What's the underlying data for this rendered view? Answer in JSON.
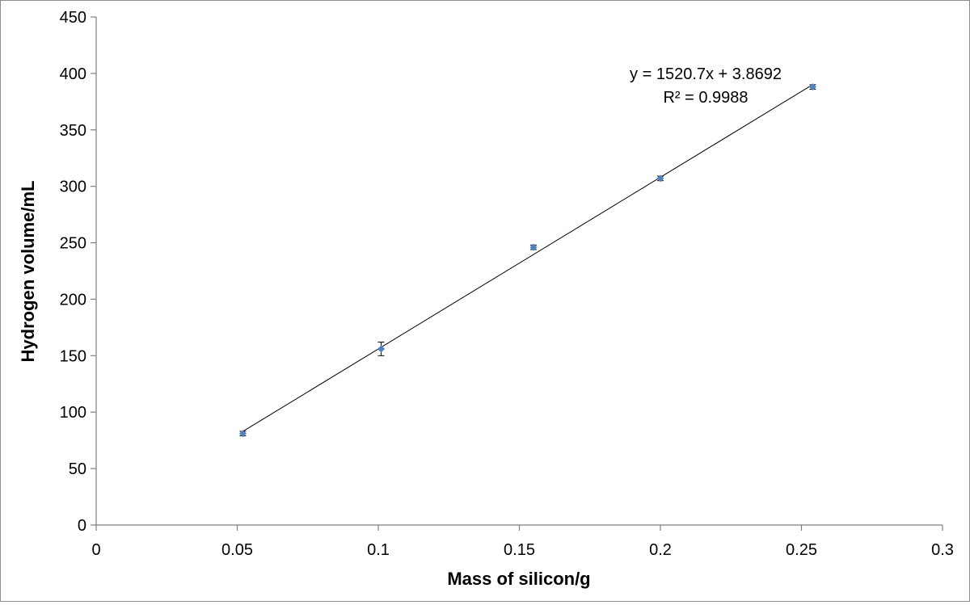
{
  "chart_data": {
    "type": "scatter",
    "title": "",
    "xlabel": "Mass of silicon/g",
    "ylabel": "Hydrogen volume/mL",
    "xlim": [
      0,
      0.3
    ],
    "ylim": [
      0,
      450
    ],
    "xticks": [
      0,
      0.05,
      0.1,
      0.15,
      0.2,
      0.25,
      0.3
    ],
    "xtick_labels": [
      "0",
      "0.05",
      "0.1",
      "0.15",
      "0.2",
      "0.25",
      "0.3"
    ],
    "yticks": [
      0,
      50,
      100,
      150,
      200,
      250,
      300,
      350,
      400,
      450
    ],
    "ytick_labels": [
      "0",
      "50",
      "100",
      "150",
      "200",
      "250",
      "300",
      "350",
      "400",
      "450"
    ],
    "grid": false,
    "legend": "none",
    "marker_color": "#4f81bd",
    "points": [
      {
        "x": 0.052,
        "y": 81,
        "err": 2
      },
      {
        "x": 0.101,
        "y": 156,
        "err": 6
      },
      {
        "x": 0.155,
        "y": 246,
        "err": 2
      },
      {
        "x": 0.2,
        "y": 307,
        "err": 2
      },
      {
        "x": 0.254,
        "y": 388,
        "err": 2
      }
    ],
    "trendline": {
      "slope": 1520.7,
      "intercept": 3.8692,
      "x_range": [
        0.052,
        0.254
      ],
      "equation_label": "y = 1520.7x + 3.8692",
      "r2_label": "R² = 0.9988"
    }
  }
}
